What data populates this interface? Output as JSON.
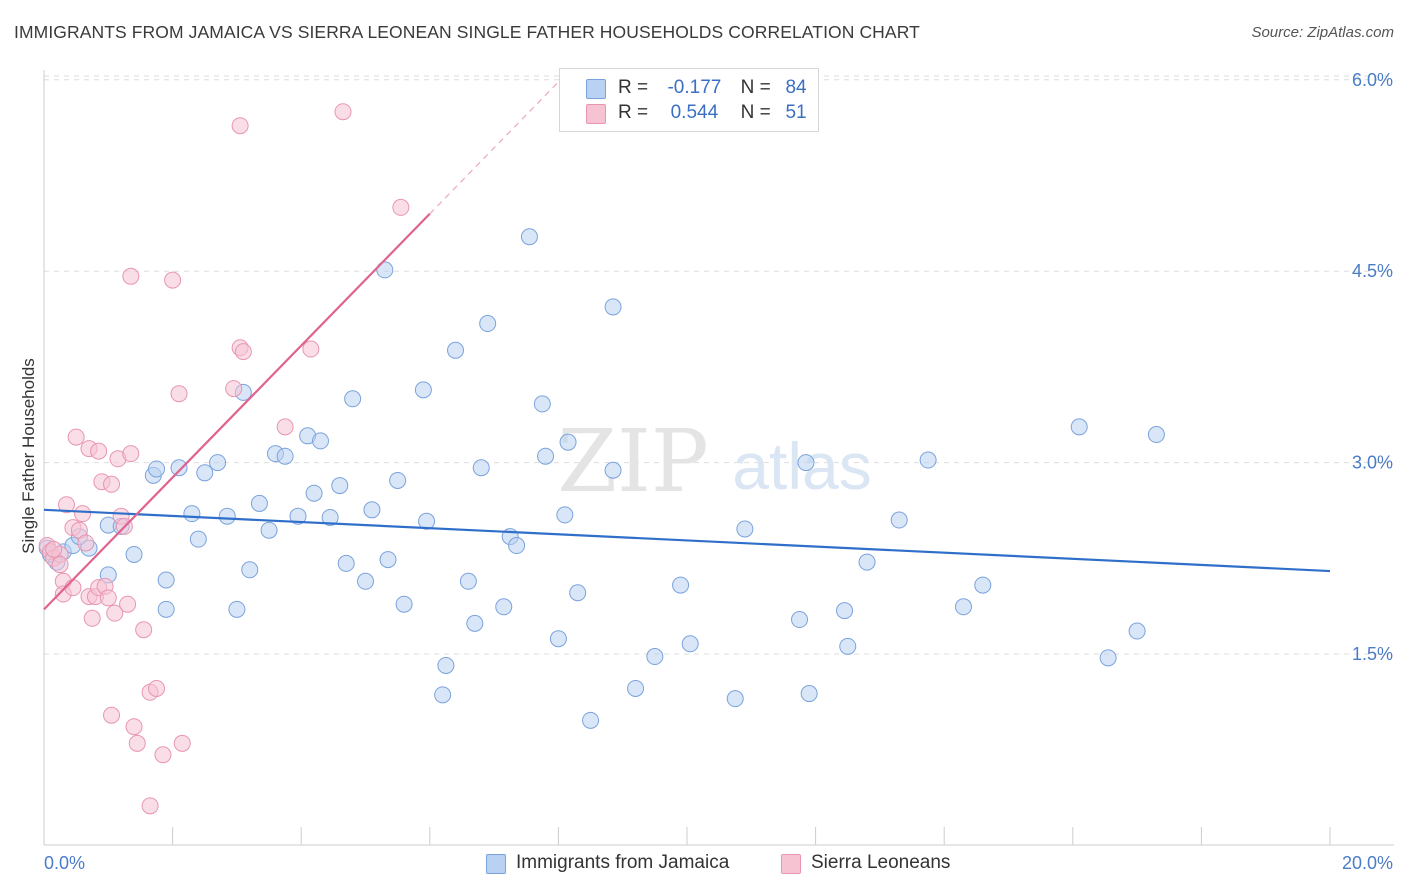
{
  "title": "IMMIGRANTS FROM JAMAICA VS SIERRA LEONEAN SINGLE FATHER HOUSEHOLDS CORRELATION CHART",
  "source": "Source: ZipAtlas.com",
  "watermark": {
    "zip": "ZIP",
    "atlas": "atlas"
  },
  "colors": {
    "blue_fill": "#b9d1f2",
    "blue_stroke": "#7aa3dc",
    "blue_line": "#2f6fca",
    "pink_fill": "#f6c3d3",
    "pink_stroke": "#e896b0",
    "pink_line": "#e0628f",
    "axis_text": "#4a7cc7",
    "grid": "#dddddd"
  },
  "legend": {
    "rows": [
      {
        "r_label": "R =",
        "r_value": "-0.177",
        "n_label": "N =",
        "n_value": "84"
      },
      {
        "r_label": "R =",
        "r_value": "0.544",
        "n_label": "N =",
        "n_value": "51"
      }
    ]
  },
  "chart_data": {
    "type": "scatter",
    "title": "IMMIGRANTS FROM JAMAICA VS SIERRA LEONEAN SINGLE FATHER HOUSEHOLDS CORRELATION CHART",
    "xlabel": "",
    "ylabel": "Single Father Households",
    "xlim": [
      0,
      20
    ],
    "ylim": [
      0,
      6.3
    ],
    "x_ticks": [
      0,
      20
    ],
    "x_tick_labels": [
      "0.0%",
      "20.0%"
    ],
    "y_ticks": [
      1.5,
      3.0,
      4.5,
      6.0
    ],
    "y_tick_labels": [
      "1.5%",
      "3.0%",
      "4.5%",
      "6.0%"
    ],
    "grid": true,
    "legend_position": "top-center",
    "series": [
      {
        "name": "Immigrants from Jamaica",
        "color": "#b9d1f2",
        "trend": {
          "x0": 0.0,
          "y0": 2.63,
          "x1": 20.0,
          "y1": 2.15
        },
        "points": [
          [
            0.05,
            2.33
          ],
          [
            0.1,
            2.28
          ],
          [
            0.2,
            2.22
          ],
          [
            0.3,
            2.3
          ],
          [
            0.45,
            2.35
          ],
          [
            0.55,
            2.42
          ],
          [
            0.7,
            2.33
          ],
          [
            1.0,
            2.51
          ],
          [
            1.2,
            2.5
          ],
          [
            1.0,
            2.12
          ],
          [
            1.4,
            2.28
          ],
          [
            1.7,
            2.9
          ],
          [
            1.75,
            2.95
          ],
          [
            2.1,
            2.96
          ],
          [
            1.9,
            2.08
          ],
          [
            1.9,
            1.85
          ],
          [
            2.3,
            2.6
          ],
          [
            2.4,
            2.4
          ],
          [
            2.5,
            2.92
          ],
          [
            2.7,
            3.0
          ],
          [
            2.85,
            2.58
          ],
          [
            3.0,
            1.85
          ],
          [
            3.1,
            3.55
          ],
          [
            3.2,
            2.16
          ],
          [
            3.35,
            2.68
          ],
          [
            3.5,
            2.47
          ],
          [
            3.6,
            3.07
          ],
          [
            3.75,
            3.05
          ],
          [
            3.95,
            2.58
          ],
          [
            4.1,
            3.21
          ],
          [
            4.2,
            2.76
          ],
          [
            4.3,
            3.17
          ],
          [
            4.45,
            2.57
          ],
          [
            4.6,
            2.82
          ],
          [
            4.7,
            2.21
          ],
          [
            4.8,
            3.5
          ],
          [
            5.0,
            2.07
          ],
          [
            5.1,
            2.63
          ],
          [
            5.3,
            4.51
          ],
          [
            5.35,
            2.24
          ],
          [
            5.5,
            2.86
          ],
          [
            5.6,
            1.89
          ],
          [
            5.9,
            3.57
          ],
          [
            5.95,
            2.54
          ],
          [
            6.2,
            1.18
          ],
          [
            6.25,
            1.41
          ],
          [
            6.4,
            3.88
          ],
          [
            6.6,
            2.07
          ],
          [
            6.7,
            1.74
          ],
          [
            6.8,
            2.96
          ],
          [
            6.9,
            4.09
          ],
          [
            7.15,
            1.87
          ],
          [
            7.25,
            2.42
          ],
          [
            7.35,
            2.35
          ],
          [
            7.55,
            4.77
          ],
          [
            7.75,
            3.46
          ],
          [
            7.8,
            3.05
          ],
          [
            8.0,
            1.62
          ],
          [
            8.15,
            3.16
          ],
          [
            8.1,
            2.59
          ],
          [
            8.3,
            1.98
          ],
          [
            8.5,
            0.98
          ],
          [
            8.85,
            2.94
          ],
          [
            8.85,
            4.22
          ],
          [
            9.2,
            1.23
          ],
          [
            9.5,
            1.48
          ],
          [
            9.9,
            2.04
          ],
          [
            10.05,
            1.58
          ],
          [
            10.75,
            1.15
          ],
          [
            10.9,
            2.48
          ],
          [
            11.75,
            1.77
          ],
          [
            11.85,
            3.0
          ],
          [
            11.9,
            1.19
          ],
          [
            12.45,
            1.84
          ],
          [
            12.5,
            1.56
          ],
          [
            12.8,
            2.22
          ],
          [
            13.3,
            2.55
          ],
          [
            13.75,
            3.02
          ],
          [
            14.3,
            1.87
          ],
          [
            14.6,
            2.04
          ],
          [
            16.1,
            3.28
          ],
          [
            16.55,
            1.47
          ],
          [
            17.0,
            1.68
          ],
          [
            17.3,
            3.22
          ]
        ]
      },
      {
        "name": "Sierra Leoneans",
        "color": "#f6c3d3",
        "trend": {
          "x0": 0.0,
          "y0": 1.85,
          "x1": 6.0,
          "y1": 4.95
        },
        "points": [
          [
            0.05,
            2.35
          ],
          [
            0.1,
            2.3
          ],
          [
            0.15,
            2.25
          ],
          [
            0.25,
            2.28
          ],
          [
            0.3,
            2.07
          ],
          [
            0.3,
            1.97
          ],
          [
            0.35,
            2.67
          ],
          [
            0.45,
            2.02
          ],
          [
            0.45,
            2.49
          ],
          [
            0.5,
            3.2
          ],
          [
            0.55,
            2.47
          ],
          [
            0.6,
            2.6
          ],
          [
            0.65,
            2.37
          ],
          [
            0.7,
            3.11
          ],
          [
            0.7,
            1.95
          ],
          [
            0.75,
            1.78
          ],
          [
            0.8,
            1.95
          ],
          [
            0.85,
            3.09
          ],
          [
            0.85,
            2.02
          ],
          [
            0.9,
            2.85
          ],
          [
            0.95,
            2.03
          ],
          [
            1.0,
            1.94
          ],
          [
            1.05,
            2.83
          ],
          [
            1.05,
            1.02
          ],
          [
            1.1,
            1.82
          ],
          [
            1.15,
            3.03
          ],
          [
            1.2,
            2.58
          ],
          [
            1.25,
            2.5
          ],
          [
            1.3,
            1.89
          ],
          [
            1.35,
            3.07
          ],
          [
            1.4,
            0.93
          ],
          [
            1.45,
            0.8
          ],
          [
            1.55,
            1.69
          ],
          [
            1.65,
            1.2
          ],
          [
            1.65,
            0.31
          ],
          [
            1.75,
            1.23
          ],
          [
            1.85,
            0.71
          ],
          [
            2.0,
            4.43
          ],
          [
            2.1,
            3.54
          ],
          [
            2.15,
            0.8
          ],
          [
            1.35,
            4.46
          ],
          [
            2.95,
            3.58
          ],
          [
            3.05,
            3.9
          ],
          [
            3.1,
            3.87
          ],
          [
            3.05,
            5.64
          ],
          [
            3.75,
            3.28
          ],
          [
            4.15,
            3.89
          ],
          [
            4.65,
            5.75
          ],
          [
            5.55,
            5.0
          ],
          [
            0.15,
            2.32
          ],
          [
            0.25,
            2.2
          ]
        ]
      }
    ]
  }
}
